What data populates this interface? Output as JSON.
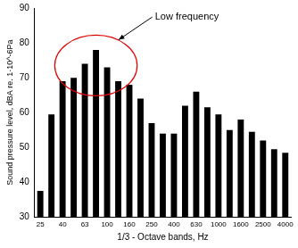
{
  "chart_data": {
    "type": "bar",
    "annotation": "Low frequency",
    "x_label": "1/3 - Octave bands, Hz",
    "y_label": "Sound pressure level, dBA re. 1·10^-6Pa",
    "categories": [
      "25",
      null,
      "40",
      null,
      "63",
      null,
      "100",
      null,
      "160",
      null,
      "250",
      null,
      "400",
      null,
      "630",
      null,
      "1000",
      null,
      "1600",
      null,
      "2500",
      null,
      "4000"
    ],
    "values": [
      37.5,
      59.5,
      69,
      70,
      74,
      78,
      73,
      69,
      68,
      64,
      57,
      54,
      54,
      62,
      66,
      61.5,
      59.5,
      55,
      58,
      54.5,
      52,
      49.5,
      48.5
    ],
    "color": "#000000",
    "ylim": [
      30,
      90
    ],
    "yticks": [
      30,
      40,
      50,
      60,
      70,
      80,
      90
    ],
    "grid": false
  }
}
